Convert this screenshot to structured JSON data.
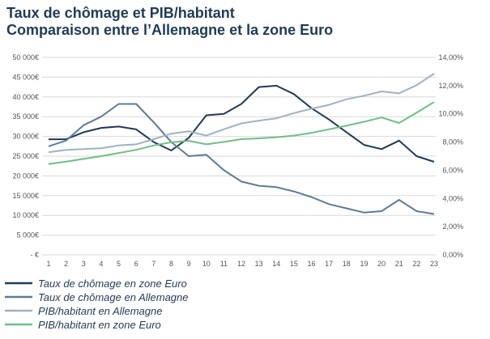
{
  "chart_data": {
    "type": "line",
    "title": "Taux de chômage et PIB/habitant",
    "subtitle": "Comparaison entre l’Allemagne et la zone Euro",
    "x": [
      "1",
      "2",
      "3",
      "4",
      "5",
      "6",
      "7",
      "8",
      "9",
      "10",
      "11",
      "12",
      "13",
      "14",
      "15",
      "16",
      "17",
      "18",
      "19",
      "20",
      "21",
      "22",
      "23"
    ],
    "y_left": {
      "range": [
        0,
        50000
      ],
      "ticks": [
        "50 000€",
        "45 000€",
        "40 000€",
        "35 000€",
        "30 000€",
        "25 000€",
        "20 000€",
        "15 000€",
        "10 000€",
        "5 000€",
        "-    €"
      ]
    },
    "y_right": {
      "range": [
        0,
        14
      ],
      "ticks": [
        "14,00%",
        "12,00%",
        "10,00%",
        "8,00%",
        "6,00%",
        "4,00%",
        "2,00%",
        "0,00%"
      ]
    },
    "grid": true,
    "legend_position": "bottom-left",
    "series": [
      {
        "name": "Taux de chômage en zone Euro",
        "axis": "right",
        "color": "#1f3b56",
        "values": [
          8.2,
          8.2,
          8.7,
          9.0,
          9.1,
          8.9,
          8.0,
          7.4,
          8.3,
          9.9,
          10.0,
          10.7,
          11.9,
          12.0,
          11.4,
          10.4,
          9.6,
          8.7,
          7.8,
          7.5,
          8.1,
          7.0,
          6.6
        ]
      },
      {
        "name": "Taux de chômage en Allemagne",
        "axis": "right",
        "color": "#5c7c95",
        "values": [
          7.7,
          8.1,
          9.2,
          9.8,
          10.7,
          10.7,
          9.4,
          8.0,
          7.0,
          7.1,
          6.0,
          5.2,
          4.9,
          4.8,
          4.5,
          4.1,
          3.6,
          3.3,
          3.0,
          3.1,
          3.9,
          3.1,
          2.9
        ]
      },
      {
        "name": "PIB/habitant en Allemagne",
        "axis": "left",
        "color": "#9fb2c1",
        "values": [
          26000,
          26600,
          26800,
          27000,
          27700,
          28000,
          29300,
          30700,
          31300,
          30200,
          31800,
          33300,
          34000,
          34600,
          35900,
          37000,
          38000,
          39400,
          40300,
          41400,
          40900,
          43000,
          45900
        ]
      },
      {
        "name": "PIB/habitant en zone Euro",
        "axis": "left",
        "color": "#6fbf85",
        "values": [
          23000,
          23600,
          24300,
          25000,
          25800,
          26600,
          27700,
          28500,
          28900,
          28000,
          28600,
          29300,
          29500,
          29800,
          30200,
          30900,
          31800,
          32700,
          33700,
          34800,
          33400,
          36000,
          38700
        ]
      }
    ]
  }
}
